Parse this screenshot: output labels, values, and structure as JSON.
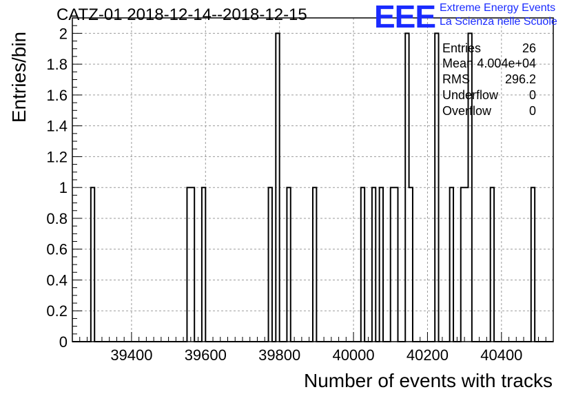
{
  "title": "CATZ-01 2018-12-14--2018-12-15",
  "logo": {
    "mark": "EEE",
    "line1": "Extreme Energy Events",
    "line2": "La Scienza nelle Scuole",
    "color": "#1a2bff"
  },
  "stats": {
    "entries_label": "Entries",
    "entries_value": "26",
    "mean_label": "Mean",
    "mean_value": "4.004e+04",
    "rms_label": "RMS",
    "rms_value": "296.2",
    "underflow_label": "Underflow",
    "underflow_value": "0",
    "overflow_label": "Overflow",
    "overflow_value": "0"
  },
  "chart_data": {
    "type": "bar",
    "title": "CATZ-01 2018-12-14--2018-12-15",
    "xlabel": "Number of events with tracks",
    "ylabel": "Entries/bin",
    "xlim": [
      39240,
      40540
    ],
    "ylim": [
      0,
      2.1
    ],
    "bin_width": 10,
    "x_ticks": [
      39400,
      39600,
      39800,
      40000,
      40200,
      40400
    ],
    "y_ticks": [
      0,
      0.2,
      0.4,
      0.6,
      0.8,
      1,
      1.2,
      1.4,
      1.6,
      1.8,
      2
    ],
    "y_tick_labels": [
      "0",
      "0.2",
      "0.4",
      "0.6",
      "0.8",
      "1",
      "1.2",
      "1.4",
      "1.6",
      "1.8",
      "2"
    ],
    "grid": true,
    "bins": [
      {
        "x": 39290,
        "count": 1
      },
      {
        "x": 39550,
        "count": 1
      },
      {
        "x": 39560,
        "count": 1
      },
      {
        "x": 39590,
        "count": 1
      },
      {
        "x": 39770,
        "count": 1
      },
      {
        "x": 39790,
        "count": 2
      },
      {
        "x": 39820,
        "count": 1
      },
      {
        "x": 39890,
        "count": 1
      },
      {
        "x": 40020,
        "count": 1
      },
      {
        "x": 40050,
        "count": 1
      },
      {
        "x": 40070,
        "count": 1
      },
      {
        "x": 40100,
        "count": 1
      },
      {
        "x": 40110,
        "count": 1
      },
      {
        "x": 40140,
        "count": 2
      },
      {
        "x": 40150,
        "count": 1
      },
      {
        "x": 40220,
        "count": 2
      },
      {
        "x": 40260,
        "count": 1
      },
      {
        "x": 40290,
        "count": 1
      },
      {
        "x": 40300,
        "count": 1
      },
      {
        "x": 40310,
        "count": 2
      },
      {
        "x": 40370,
        "count": 1
      },
      {
        "x": 40480,
        "count": 1
      }
    ]
  }
}
